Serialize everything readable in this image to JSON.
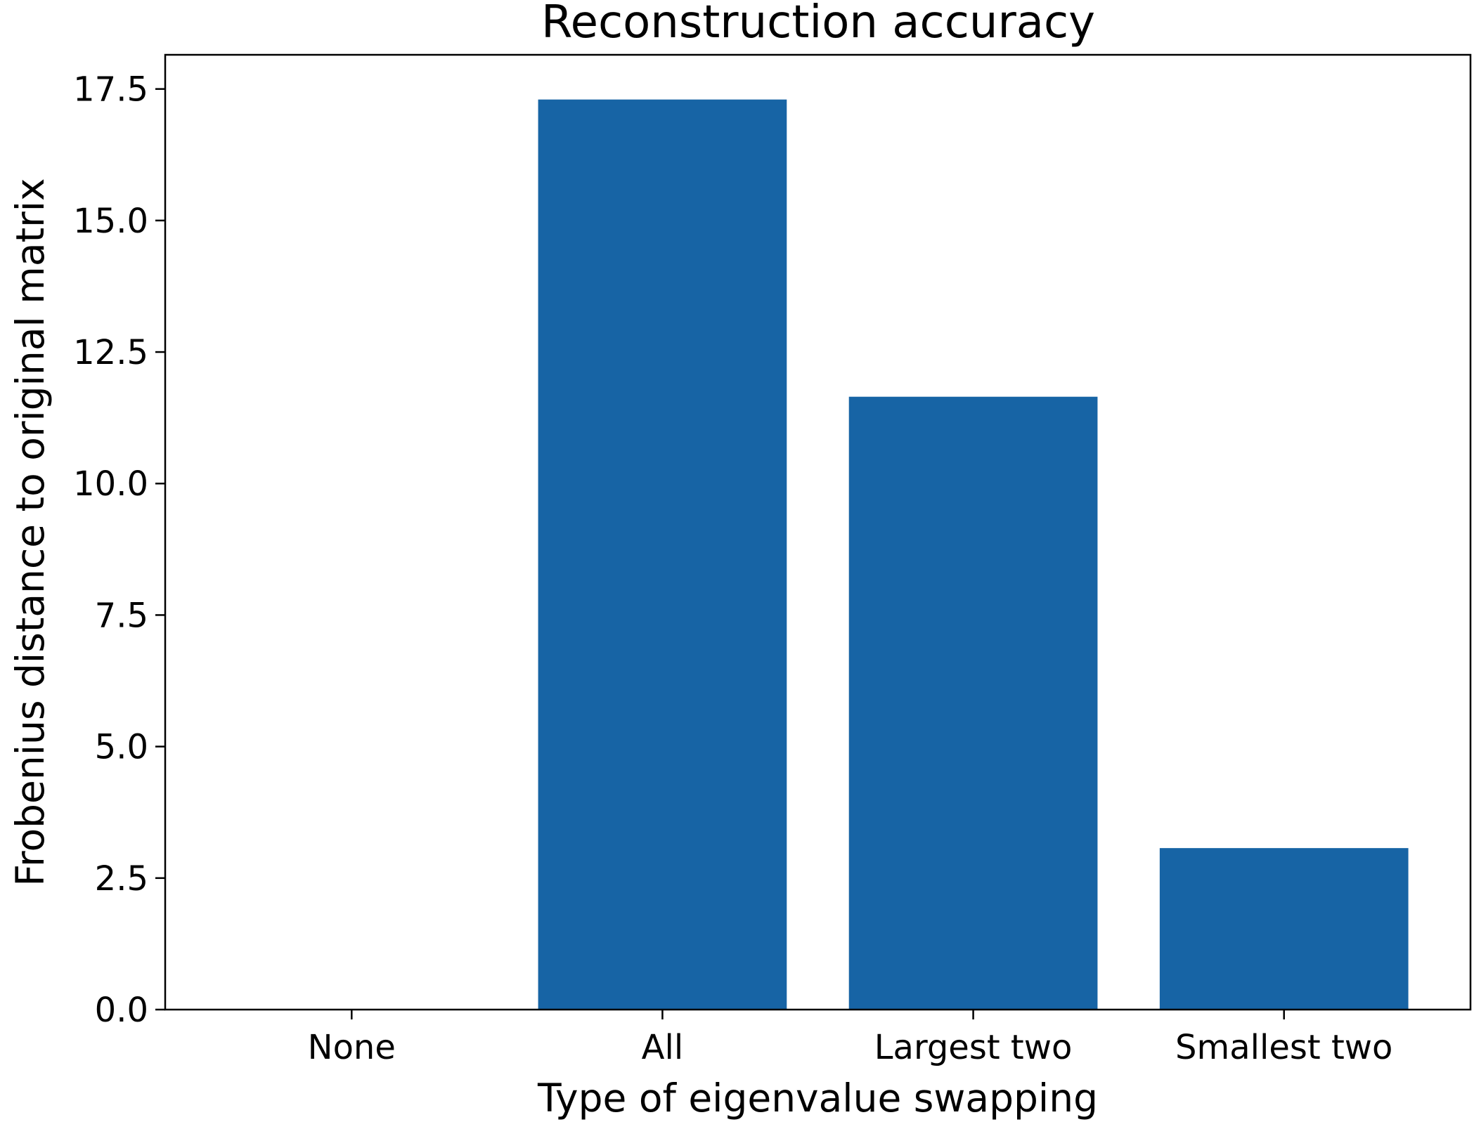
{
  "chart_data": {
    "type": "bar",
    "title": "Reconstruction accuracy",
    "xlabel": "Type of eigenvalue swapping",
    "ylabel": "Frobenius distance to original matrix",
    "categories": [
      "None",
      "All",
      "Largest two",
      "Smallest two"
    ],
    "values": [
      0.0,
      17.3,
      11.65,
      3.07
    ],
    "ylim": [
      0,
      18.15
    ],
    "yticks": [
      0.0,
      2.5,
      5.0,
      7.5,
      10.0,
      12.5,
      15.0,
      17.5
    ],
    "ytick_labels": [
      "0.0",
      "2.5",
      "5.0",
      "7.5",
      "10.0",
      "12.5",
      "15.0",
      "17.5"
    ],
    "bar_color": "#1764a5",
    "grid": false,
    "legend": "none"
  }
}
